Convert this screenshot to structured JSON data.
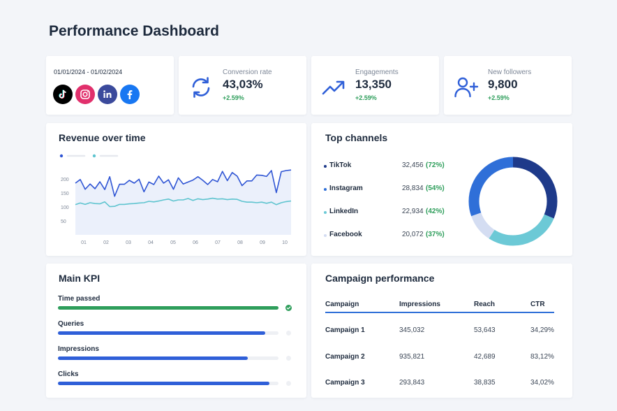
{
  "page_title": "Performance Dashboard",
  "date_range": "01/01/2024 - 01/02/2024",
  "social_icons": [
    "tiktok-icon",
    "instagram-icon",
    "linkedin-icon",
    "facebook-icon"
  ],
  "stats": [
    {
      "label": "Conversion rate",
      "value": "43,03%",
      "delta": "+2.59%",
      "icon": "refresh-icon"
    },
    {
      "label": "Engagements",
      "value": "13,350",
      "delta": "+2.59%",
      "icon": "trend-up-icon"
    },
    {
      "label": "New followers",
      "value": "9,800",
      "delta": "+2.59%",
      "icon": "user-plus-icon"
    }
  ],
  "revenue": {
    "title": "Revenue over time"
  },
  "chart_data": {
    "type": "area",
    "title": "Revenue over time",
    "xlabel": "",
    "ylabel": "",
    "x_ticks": [
      "01",
      "02",
      "03",
      "04",
      "05",
      "06",
      "07",
      "08",
      "09",
      "10"
    ],
    "y_ticks": [
      "200",
      "150",
      "100",
      "50"
    ],
    "ylim": [
      0,
      250
    ],
    "grid": false,
    "legend": "top-left",
    "series": [
      {
        "color": "#2f55d4",
        "values": [
          185,
          198,
          163,
          182,
          165,
          190,
          162,
          208,
          138,
          181,
          181,
          195,
          185,
          199,
          154,
          189,
          180,
          210,
          185,
          197,
          163,
          204,
          182,
          189,
          196,
          208,
          195,
          180,
          198,
          190,
          227,
          194,
          223,
          210,
          176,
          193,
          193,
          214,
          213,
          209,
          230,
          151,
          226,
          230,
          232
        ]
      },
      {
        "color": "#5ec4cf",
        "values": [
          108,
          114,
          109,
          115,
          112,
          111,
          118,
          101,
          102,
          109,
          109,
          111,
          112,
          114,
          115,
          120,
          118,
          121,
          125,
          128,
          121,
          125,
          125,
          130,
          123,
          129,
          126,
          128,
          131,
          128,
          129,
          126,
          128,
          127,
          120,
          117,
          117,
          115,
          117,
          113,
          117,
          108,
          115,
          119,
          121
        ]
      }
    ]
  },
  "channels": {
    "title": "Top channels",
    "items": [
      {
        "name": "TikTok",
        "value": "32,456",
        "pct": "(72%)",
        "color": "#1e3a8a"
      },
      {
        "name": "Instagram",
        "value": "28,834",
        "pct": "(54%)",
        "color": "#2f6fd8"
      },
      {
        "name": "LinkedIn",
        "value": "22,934",
        "pct": "(42%)",
        "color": "#6cc9d6"
      },
      {
        "name": "Facebook",
        "value": "20,072",
        "pct": "(37%)",
        "color": "#d4ddf2"
      }
    ],
    "donut": [
      {
        "share": 0.313,
        "color": "#1e3a8a"
      },
      {
        "share": 0.278,
        "color": "#6cc9d6"
      },
      {
        "share": 0.104,
        "color": "#d4ddf2"
      },
      {
        "share": 0.305,
        "color": "#2f6fd8"
      }
    ]
  },
  "kpi": {
    "title": "Main KPI",
    "items": [
      {
        "label": "Time passed",
        "progress": 1.0,
        "color": "#2e9e5b",
        "done": true
      },
      {
        "label": "Queries",
        "progress": 0.94,
        "color": "#2f5fd8",
        "done": false
      },
      {
        "label": "Impressions",
        "progress": 0.86,
        "color": "#2f5fd8",
        "done": false
      },
      {
        "label": "Clicks",
        "progress": 0.96,
        "color": "#2f5fd8",
        "done": false
      }
    ]
  },
  "campaign": {
    "title": "Campaign performance",
    "headers": [
      "Campaign",
      "Impressions",
      "Reach",
      "CTR"
    ],
    "rows": [
      [
        "Campaign 1",
        "345,032",
        "53,643",
        "34,29%"
      ],
      [
        "Campaign 2",
        "935,821",
        "42,689",
        "83,12%"
      ],
      [
        "Campaign 3",
        "293,843",
        "38,835",
        "34,02%"
      ]
    ]
  }
}
